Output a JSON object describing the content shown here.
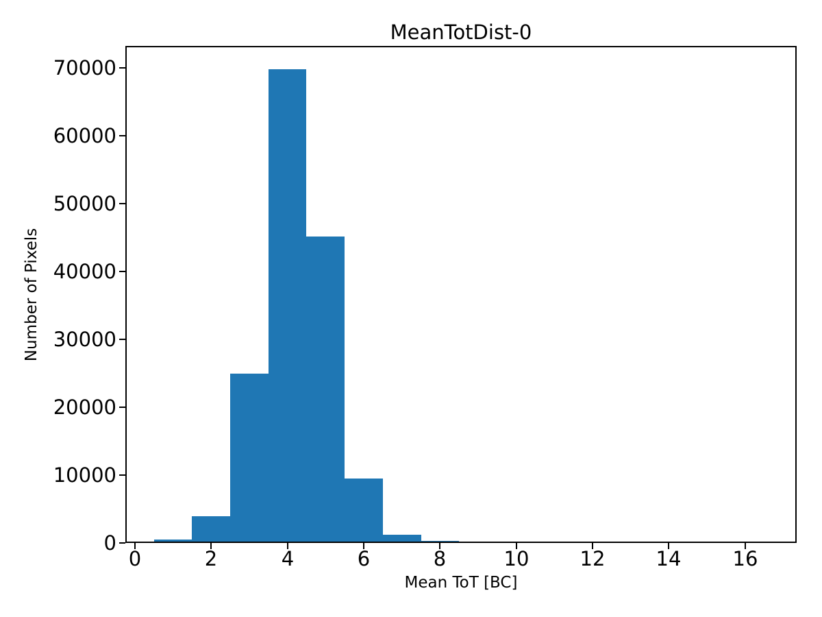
{
  "chart_data": {
    "type": "bar",
    "subtype": "histogram",
    "title": "MeanTotDist-0",
    "xlabel": "Mean ToT [BC]",
    "ylabel": "Number of Pixels",
    "bin_edges": [
      0.5,
      1.5,
      2.5,
      3.5,
      4.5,
      5.5,
      6.5,
      7.5,
      8.5,
      9.5,
      10.5,
      11.5,
      12.5,
      13.5,
      14.5,
      15.5,
      16.5
    ],
    "counts": [
      270,
      3700,
      24700,
      69600,
      44900,
      9300,
      1000,
      150,
      0,
      0,
      0,
      0,
      0,
      0,
      0,
      0
    ],
    "xticks": [
      0,
      2,
      4,
      6,
      8,
      10,
      12,
      14,
      16
    ],
    "yticks": [
      0,
      10000,
      20000,
      30000,
      40000,
      50000,
      60000,
      70000
    ],
    "xlim": [
      -0.25,
      17.35
    ],
    "ylim": [
      0,
      73200
    ],
    "bar_color": "#1f77b4",
    "axis_color": "#000000",
    "background_color": "#ffffff",
    "grid": "off",
    "legend": "none"
  }
}
